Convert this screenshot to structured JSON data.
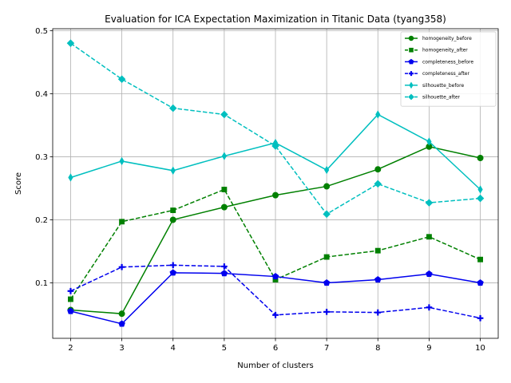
{
  "chart_data": {
    "type": "line",
    "title": "Evaluation for ICA Expectation Maximization in Titanic Data (tyang358)",
    "xlabel": "Number of clusters",
    "ylabel": "Score",
    "x": [
      2,
      3,
      4,
      5,
      6,
      7,
      8,
      9,
      10
    ],
    "xlim": [
      1.65,
      10.35
    ],
    "ylim": [
      0.012,
      0.503
    ],
    "xticks": [
      "2",
      "3",
      "4",
      "5",
      "6",
      "7",
      "8",
      "9",
      "10"
    ],
    "yticks": [
      {
        "value": 0.1,
        "label": "0.1"
      },
      {
        "value": 0.2,
        "label": "0.2"
      },
      {
        "value": 0.3,
        "label": "0.3"
      },
      {
        "value": 0.4,
        "label": "0.4"
      },
      {
        "value": 0.5,
        "label": "0.5"
      }
    ],
    "grid": true,
    "legend_position": "top-right",
    "series": [
      {
        "name": "homogeneity_before",
        "color": "#008000",
        "style": "solid",
        "marker": "circle",
        "values": [
          0.057,
          0.051,
          0.2,
          0.22,
          0.239,
          0.253,
          0.28,
          0.316,
          0.298
        ]
      },
      {
        "name": "homogeneity_after",
        "color": "#008000",
        "style": "dashed",
        "marker": "square",
        "values": [
          0.074,
          0.197,
          0.215,
          0.248,
          0.105,
          0.141,
          0.151,
          0.173,
          0.137
        ]
      },
      {
        "name": "completeness_before",
        "color": "#0000ee",
        "style": "solid",
        "marker": "pentagon",
        "values": [
          0.055,
          0.035,
          0.116,
          0.115,
          0.11,
          0.1,
          0.105,
          0.114,
          0.1
        ]
      },
      {
        "name": "completeness_after",
        "color": "#0000ee",
        "style": "dashed",
        "marker": "plus",
        "values": [
          0.087,
          0.125,
          0.128,
          0.126,
          0.049,
          0.054,
          0.053,
          0.061,
          0.044
        ]
      },
      {
        "name": "silhouette_before",
        "color": "#00bfbf",
        "style": "solid",
        "marker": "thin-diamond",
        "values": [
          0.267,
          0.293,
          0.278,
          0.301,
          0.322,
          0.279,
          0.367,
          0.324,
          0.248
        ]
      },
      {
        "name": "silhouette_after",
        "color": "#00bfbf",
        "style": "dashed",
        "marker": "diamond",
        "values": [
          0.48,
          0.423,
          0.377,
          0.367,
          0.317,
          0.209,
          0.257,
          0.227,
          0.234
        ]
      }
    ]
  }
}
